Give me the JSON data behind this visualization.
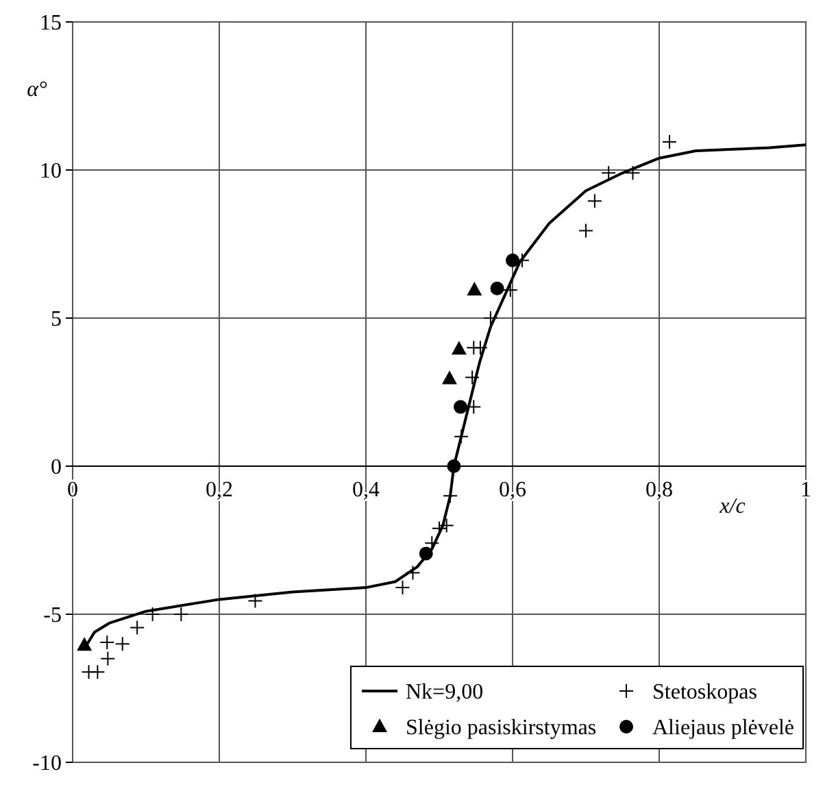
{
  "chart_data": {
    "type": "line",
    "xlabel": "x/c",
    "ylabel": "α°",
    "xlim": [
      0,
      1
    ],
    "ylim": [
      -10,
      15
    ],
    "xticks": [
      0,
      {
        "value": 0.2,
        "label": "0,2"
      },
      {
        "value": 0.4,
        "label": "0,4"
      },
      {
        "value": 0.6,
        "label": "0,6"
      },
      {
        "value": 0.8,
        "label": "0,8"
      },
      1
    ],
    "yticks": [
      -10,
      -5,
      0,
      5,
      10,
      15
    ],
    "grid": true,
    "legend": "bottom right",
    "series": [
      {
        "name": "Nk=9,00",
        "color": "#000000",
        "marker": "none",
        "line_style": "solid",
        "x": [
          0.02,
          0.03,
          0.05,
          0.1,
          0.2,
          0.3,
          0.4,
          0.44,
          0.47,
          0.49,
          0.505,
          0.515,
          0.52,
          0.53,
          0.54,
          0.555,
          0.57,
          0.59,
          0.61,
          0.65,
          0.7,
          0.75,
          0.8,
          0.85,
          0.9,
          0.95,
          1.0
        ],
        "values": [
          -6.0,
          -5.6,
          -5.3,
          -4.9,
          -4.5,
          -4.25,
          -4.1,
          -3.9,
          -3.4,
          -2.8,
          -2.0,
          -1.0,
          0,
          1,
          2,
          3.5,
          4.7,
          5.8,
          6.9,
          8.2,
          9.3,
          9.9,
          10.4,
          10.65,
          10.7,
          10.75,
          10.85
        ]
      },
      {
        "name": "Stetoskopas",
        "type": "scatter",
        "color": "#000000",
        "marker": "cross",
        "x": [
          0.022,
          0.034,
          0.048,
          0.047,
          0.068,
          0.088,
          0.109,
          0.148,
          0.249,
          0.45,
          0.464,
          0.49,
          0.5,
          0.51,
          0.515,
          0.53,
          0.545,
          0.547,
          0.547,
          0.556,
          0.57,
          0.597,
          0.613,
          0.7,
          0.712,
          0.731,
          0.764,
          0.814
        ],
        "values": [
          -6.95,
          -6.95,
          -6.5,
          -5.95,
          -6.0,
          -5.45,
          -5.0,
          -5.0,
          -4.55,
          -4.1,
          -3.6,
          -2.6,
          -2.1,
          -2.0,
          -1.0,
          1.0,
          3.0,
          2.0,
          4.0,
          4.0,
          5.0,
          5.95,
          6.95,
          7.95,
          8.95,
          9.9,
          9.9,
          10.95
        ]
      },
      {
        "name": "Slėgio pasiskirstymas",
        "type": "scatter",
        "color": "#000000",
        "marker": "triangle",
        "x": [
          0.016,
          0.514,
          0.527,
          0.548
        ],
        "values": [
          -6.05,
          2.95,
          3.95,
          5.95
        ]
      },
      {
        "name": "Aliejaus plėvelė",
        "type": "scatter",
        "color": "#000000",
        "marker": "circle",
        "x": [
          0.482,
          0.52,
          0.529,
          0.579,
          0.6
        ],
        "values": [
          -2.95,
          0,
          2,
          6,
          6.95
        ]
      }
    ]
  }
}
